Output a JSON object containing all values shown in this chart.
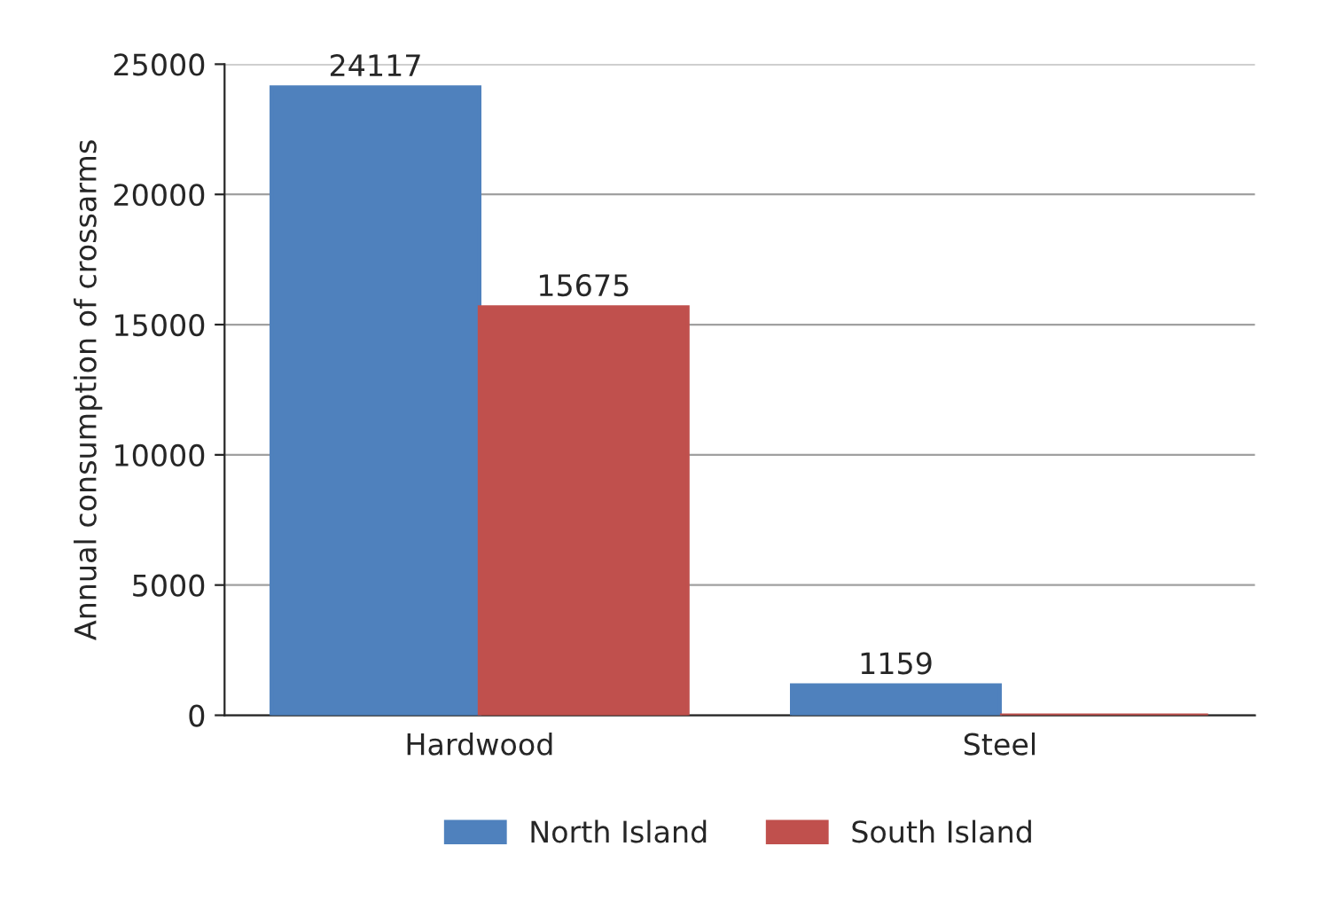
{
  "chart_data": {
    "type": "bar",
    "ylabel": "Annual consumption of crossarms",
    "categories": [
      "Hardwood",
      "Steel"
    ],
    "series": [
      {
        "name": "North Island",
        "color": "#4f81bd",
        "values": [
          24117,
          1159
        ],
        "value_labels": [
          "24117",
          "1159"
        ]
      },
      {
        "name": "South Island",
        "color": "#c0504d",
        "values": [
          15675,
          0
        ],
        "value_labels": [
          "15675",
          null
        ]
      }
    ],
    "ylim": [
      0,
      25000
    ],
    "yticks": [
      0,
      5000,
      10000,
      15000,
      20000,
      25000
    ],
    "grid": "y",
    "legend": "bottom"
  }
}
